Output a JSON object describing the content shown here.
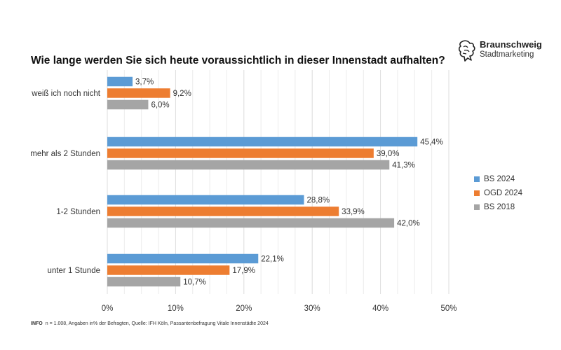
{
  "logo": {
    "name": "Braunschweig",
    "subtitle": "Stadtmarketing",
    "icon": "lion-icon"
  },
  "footnote": {
    "label": "INFO",
    "text": "n = 1.008, Angaben in% der Befragten, Quelle: IFH Köln, Passantenbefragung Vitale Innenstädte 2024"
  },
  "chart_data": {
    "type": "bar",
    "orientation": "horizontal",
    "title": "Wie lange werden Sie sich heute voraussichtlich in dieser Innenstadt aufhalten?",
    "categories": [
      "weiß ich noch nicht",
      "mehr als 2 Stunden",
      "1-2 Stunden",
      "unter 1 Stunde"
    ],
    "series": [
      {
        "name": "BS 2024",
        "color": "#5b9bd5",
        "values": [
          3.7,
          45.4,
          28.8,
          22.1
        ],
        "labels": [
          "3,7%",
          "45,4%",
          "28,8%",
          "22,1%"
        ]
      },
      {
        "name": "OGD 2024",
        "color": "#ed7d31",
        "values": [
          9.2,
          39.0,
          33.9,
          17.9
        ],
        "labels": [
          "9,2%",
          "39,0%",
          "33,9%",
          "17,9%"
        ]
      },
      {
        "name": "BS 2018",
        "color": "#a5a5a5",
        "values": [
          6.0,
          41.3,
          42.0,
          10.7
        ],
        "labels": [
          "6,0%",
          "41,3%",
          "42,0%",
          "10,7%"
        ]
      }
    ],
    "xlim": [
      0,
      50
    ],
    "x_ticks": [
      0,
      10,
      20,
      30,
      40,
      50
    ],
    "x_tick_labels": [
      "0%",
      "10%",
      "20%",
      "30%",
      "40%",
      "50%"
    ],
    "grid": true,
    "legend_position": "right"
  }
}
